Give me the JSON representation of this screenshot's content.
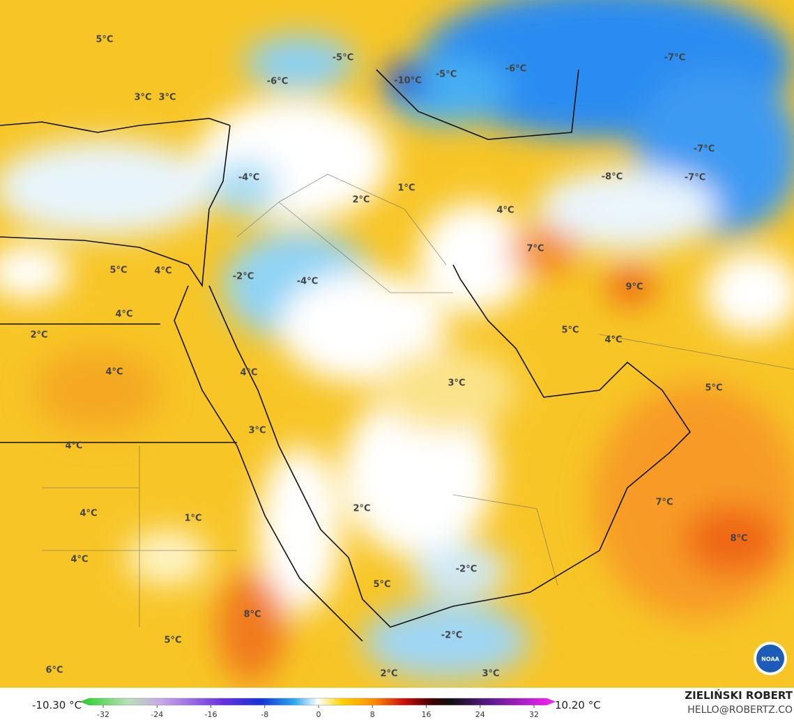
{
  "map_labels": [
    "5°C",
    "-5°C",
    "-6°C",
    "3°C",
    "3°C",
    "-10°C",
    "-5°C",
    "-6°C",
    "-7°C",
    "-7°C",
    "-7°C",
    "-8°C",
    "-4°C",
    "1°C",
    "2°C",
    "4°C",
    "7°C",
    "9°C",
    "-2°C",
    "-4°C",
    "5°C",
    "4°C",
    "4°C",
    "2°C",
    "5°C",
    "4°C",
    "4°C",
    "4°C",
    "3°C",
    "5°C",
    "3°C",
    "4°C",
    "7°C",
    "2°C",
    "4°C",
    "1°C",
    "8°C",
    "4°C",
    "-2°C",
    "5°C",
    "8°C",
    "5°C",
    "-2°C",
    "6°C",
    "2°C",
    "3°C"
  ],
  "colorbar": {
    "min_label": "-10.30 °C",
    "max_label": "10.20 °C",
    "ticks": [
      -32,
      -24,
      -16,
      -8,
      0,
      8,
      16,
      24,
      32
    ]
  },
  "credit": {
    "name": "ZIELIŃSKI ROBERT",
    "email": "HELLO@ROBERTZ.CO",
    "logo": "NOAA"
  }
}
